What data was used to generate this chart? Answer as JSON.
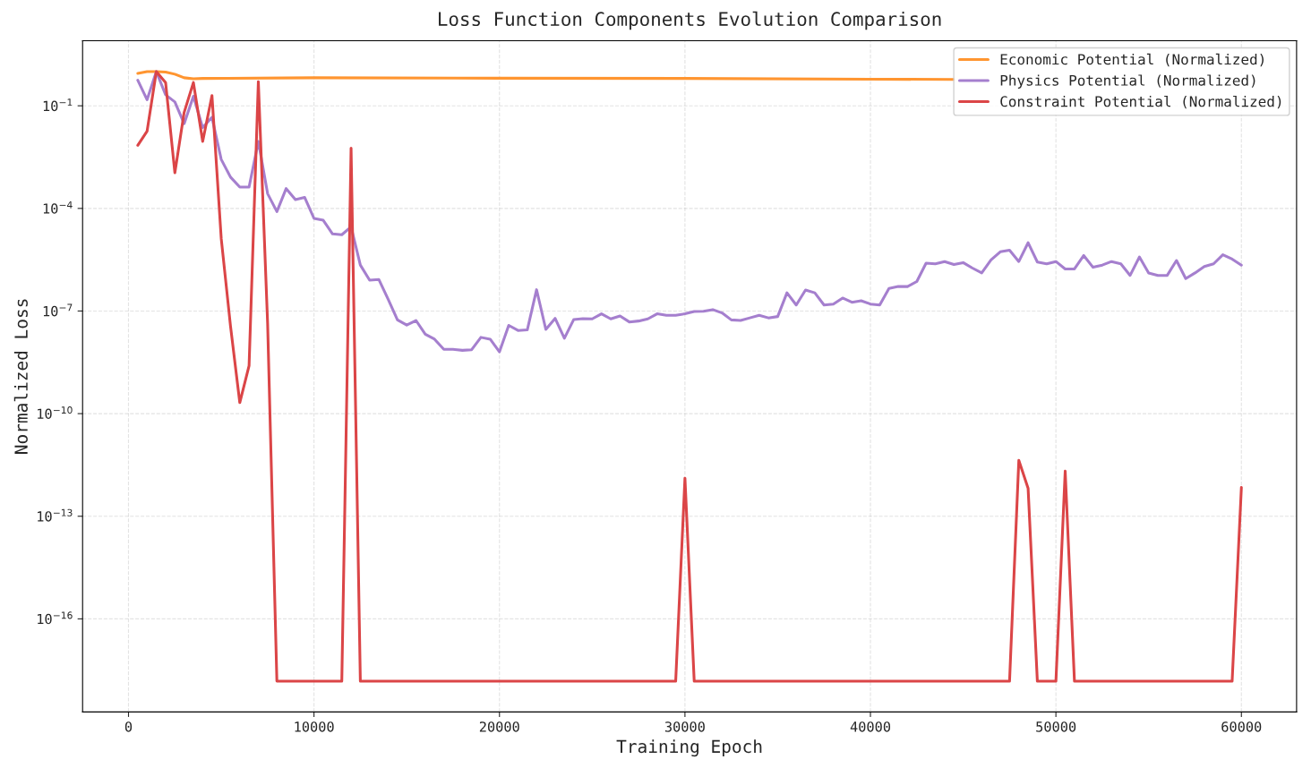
{
  "chart_data": {
    "type": "line",
    "title": "Loss Function Components Evolution Comparison",
    "xlabel": "Training Epoch",
    "ylabel": "Normalized Loss",
    "log": "y",
    "grid": true,
    "legend": "top right",
    "line_style": "solid",
    "xlim": [
      -2475,
      62975
    ],
    "xticks": [
      0,
      10000,
      20000,
      30000,
      40000,
      50000,
      60000
    ],
    "ylim": [
      1.9e-19,
      8.0
    ],
    "yticks": [
      {
        "value": 0.1,
        "label": "10$^{−1}$"
      },
      {
        "value": 0.0001,
        "label": "10$^{−4}$"
      },
      {
        "value": 1e-07,
        "label": "10$^{−7}$"
      },
      {
        "value": 1e-10,
        "label": "10$^{−10}$"
      },
      {
        "value": 1e-13,
        "label": "10$^{−13}$"
      },
      {
        "value": 1e-16,
        "label": "10$^{−16}$"
      }
    ],
    "series": [
      {
        "name": "Economic Potential (Normalized)",
        "color": "#ff9530",
        "x": [
          500,
          1000,
          1500,
          2000,
          2500,
          3000,
          3500,
          4000,
          10000,
          20000,
          30000,
          40000,
          44500
        ],
        "values": [
          0.89,
          1.0,
          1.0,
          0.97,
          0.84,
          0.66,
          0.62,
          0.63,
          0.66,
          0.64,
          0.63,
          0.6,
          0.59
        ]
      },
      {
        "name": "Physics Potential (Normalized)",
        "color": "#a57fce",
        "x": [
          500,
          1000,
          1500,
          2000,
          2500,
          3000,
          3500,
          4000,
          4500,
          5000,
          5500,
          6000,
          6500,
          7000,
          7500,
          8000,
          8500,
          9000,
          9500,
          10000,
          10500,
          11000,
          11500,
          12000,
          12500,
          13000,
          13500,
          14000,
          14500,
          15000,
          15500,
          16000,
          16500,
          17000,
          17500,
          18000,
          18500,
          19000,
          19500,
          20000,
          20500,
          21000,
          21500,
          22000,
          22500,
          23000,
          23500,
          24000,
          24500,
          25000,
          25500,
          26000,
          26500,
          27000,
          27500,
          28000,
          28500,
          29000,
          29500,
          30000,
          30500,
          31000,
          31500,
          32000,
          32500,
          33000,
          33500,
          34000,
          34500,
          35000,
          35500,
          36000,
          36500,
          37000,
          37500,
          38000,
          38500,
          39000,
          39500,
          40000,
          40500,
          41000,
          41500,
          42000,
          42500,
          43000,
          43500,
          44000,
          44500,
          45000,
          45500,
          46000,
          46500,
          47000,
          47500,
          48000,
          48500,
          49000,
          49500,
          50000,
          50500,
          51000,
          51500,
          52000,
          52500,
          53000,
          53500,
          54000,
          54500,
          55000,
          55500,
          56000,
          56500,
          57000,
          57500,
          58000,
          58500,
          59000,
          59500,
          60000
        ],
        "values": [
          0.56,
          0.15,
          1.0,
          0.21,
          0.13,
          0.03,
          0.19,
          0.023,
          0.046,
          0.0027,
          0.00082,
          0.00042,
          0.00042,
          0.0091,
          0.00027,
          8.1e-05,
          0.00038,
          0.00018,
          0.00021,
          5.1e-05,
          4.5e-05,
          1.8e-05,
          1.7e-05,
          2.9e-05,
          2.2e-06,
          8e-07,
          8.3e-07,
          2.2e-07,
          5.5e-08,
          3.9e-08,
          5.3e-08,
          2.1e-08,
          1.5e-08,
          7.6e-09,
          7.6e-09,
          7.1e-09,
          7.4e-09,
          1.7e-08,
          1.5e-08,
          6.4e-09,
          3.8e-08,
          2.7e-08,
          2.8e-08,
          4.2e-07,
          2.9e-08,
          6.1e-08,
          1.6e-08,
          5.6e-08,
          6e-08,
          5.9e-08,
          8.3e-08,
          5.9e-08,
          7.2e-08,
          4.8e-08,
          5.1e-08,
          5.9e-08,
          8.3e-08,
          7.5e-08,
          7.5e-08,
          8.3e-08,
          9.7e-08,
          9.8e-08,
          1.1e-07,
          8.8e-08,
          5.5e-08,
          5.3e-08,
          6.3e-08,
          7.5e-08,
          6.3e-08,
          6.9e-08,
          3.4e-07,
          1.5e-07,
          4.1e-07,
          3.4e-07,
          1.5e-07,
          1.6e-07,
          2.4e-07,
          1.8e-07,
          2e-07,
          1.6e-07,
          1.5e-07,
          4.6e-07,
          5.2e-07,
          5.2e-07,
          7.3e-07,
          2.5e-06,
          2.4e-06,
          2.8e-06,
          2.3e-06,
          2.6e-06,
          1.8e-06,
          1.3e-06,
          3.1e-06,
          5.4e-06,
          6e-06,
          2.8e-06,
          9.9e-06,
          2.7e-06,
          2.4e-06,
          2.8e-06,
          1.7e-06,
          1.7e-06,
          4.2e-06,
          1.9e-06,
          2.2e-06,
          2.8e-06,
          2.4e-06,
          1.1e-06,
          3.8e-06,
          1.3e-06,
          1.1e-06,
          1.1e-06,
          3e-06,
          8.9e-07,
          1.3e-06,
          2e-06,
          2.4e-06,
          4.4e-06,
          3.3e-06,
          2.2e-06
        ]
      },
      {
        "name": "Constraint Potential (Normalized)",
        "color": "#db4547",
        "x": [
          500,
          1000,
          1500,
          2000,
          2500,
          3000,
          3500,
          4000,
          4500,
          5000,
          5500,
          6000,
          6500,
          7000,
          7500,
          8000,
          11500,
          12000,
          12500,
          29500,
          30000,
          30500,
          47500,
          48000,
          48500,
          49000,
          50000,
          50500,
          51000,
          59500,
          60000
        ],
        "values": [
          0.007,
          0.018,
          1.0,
          0.48,
          0.0011,
          0.064,
          0.48,
          0.0091,
          0.2,
          1.3e-05,
          3.6e-08,
          2.1e-10,
          2.5e-09,
          0.51,
          4.4e-08,
          1.5e-18,
          1.5e-18,
          0.0058,
          1.5e-18,
          1.5e-18,
          1.3e-12,
          1.5e-18,
          1.5e-18,
          4.3e-12,
          6.6e-13,
          1.5e-18,
          1.5e-18,
          2.1e-12,
          1.5e-18,
          1.5e-18,
          7e-13
        ]
      }
    ]
  }
}
